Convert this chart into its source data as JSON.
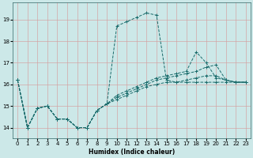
{
  "xlabel": "Humidex (Indice chaleur)",
  "ylabel": "",
  "bg_color": "#cce8e8",
  "grid_color": "#d4a0a0",
  "line_color": "#1a6b6b",
  "xlim": [
    -0.5,
    23.5
  ],
  "ylim": [
    13.5,
    19.8
  ],
  "yticks": [
    14,
    15,
    16,
    17,
    18,
    19
  ],
  "xticks": [
    0,
    1,
    2,
    3,
    4,
    5,
    6,
    7,
    8,
    9,
    10,
    11,
    12,
    13,
    14,
    15,
    16,
    17,
    18,
    19,
    20,
    21,
    22,
    23
  ],
  "lines": [
    {
      "x": [
        0,
        1,
        2,
        3,
        4,
        5,
        6,
        7,
        8,
        9,
        10,
        11,
        12,
        13,
        14,
        15,
        16,
        17,
        18,
        19,
        20,
        21,
        22,
        23
      ],
      "y": [
        16.2,
        14.0,
        14.9,
        15.0,
        14.4,
        14.4,
        14.0,
        14.0,
        14.8,
        15.1,
        18.7,
        18.9,
        19.1,
        19.3,
        19.2,
        16.2,
        16.1,
        16.1,
        16.1,
        16.1,
        16.1,
        16.1,
        16.1,
        16.1
      ]
    },
    {
      "x": [
        0,
        1,
        2,
        3,
        4,
        5,
        6,
        7,
        8,
        9,
        10,
        11,
        12,
        13,
        14,
        15,
        16,
        17,
        18,
        19,
        20,
        21,
        22,
        23
      ],
      "y": [
        16.2,
        14.0,
        14.9,
        15.0,
        14.4,
        14.4,
        14.0,
        14.0,
        14.8,
        15.1,
        15.3,
        15.5,
        15.7,
        15.9,
        16.0,
        16.1,
        16.1,
        16.2,
        16.3,
        16.4,
        16.4,
        16.2,
        16.1,
        16.1
      ]
    },
    {
      "x": [
        0,
        1,
        2,
        3,
        4,
        5,
        6,
        7,
        8,
        9,
        10,
        11,
        12,
        13,
        14,
        15,
        16,
        17,
        18,
        19,
        20,
        21,
        22,
        23
      ],
      "y": [
        16.2,
        14.0,
        14.9,
        15.0,
        14.4,
        14.4,
        14.0,
        14.0,
        14.8,
        15.1,
        15.5,
        15.7,
        15.9,
        16.1,
        16.3,
        16.4,
        16.5,
        16.6,
        17.5,
        17.0,
        16.3,
        16.2,
        16.1,
        16.1
      ]
    },
    {
      "x": [
        0,
        1,
        2,
        3,
        4,
        5,
        6,
        7,
        8,
        9,
        10,
        11,
        12,
        13,
        14,
        15,
        16,
        17,
        18,
        19,
        20,
        21,
        22,
        23
      ],
      "y": [
        16.2,
        14.0,
        14.9,
        15.0,
        14.4,
        14.4,
        14.0,
        14.0,
        14.8,
        15.1,
        15.4,
        15.6,
        15.8,
        16.0,
        16.2,
        16.3,
        16.4,
        16.5,
        16.6,
        16.8,
        16.9,
        16.2,
        16.1,
        16.1
      ]
    }
  ]
}
